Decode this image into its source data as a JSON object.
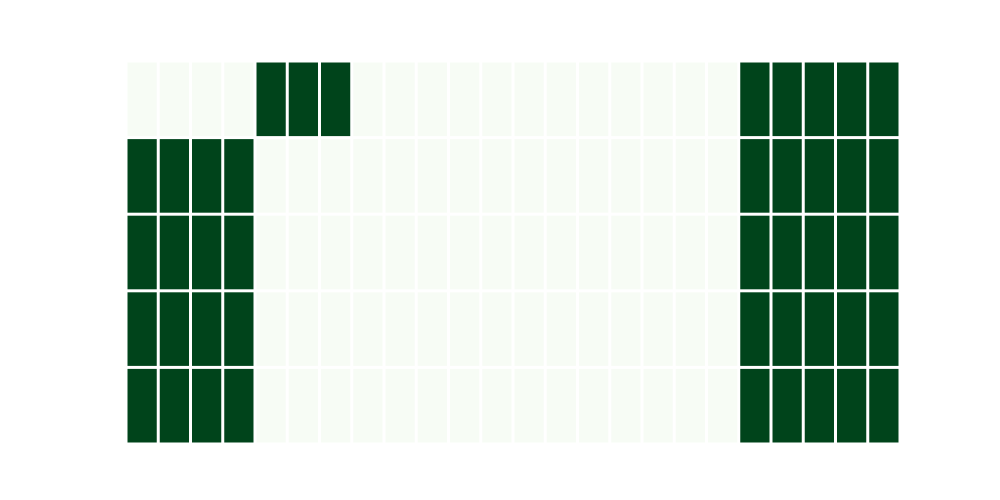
{
  "chart_data": {
    "type": "heatmap",
    "n_rows": 5,
    "n_cols": 24,
    "grid": false,
    "title": "",
    "xlabel": "",
    "ylabel": "",
    "colormap": {
      "low": "#f7fcf5",
      "high": "#00441b"
    },
    "values": [
      [
        0,
        0,
        0,
        0,
        1,
        1,
        1,
        0,
        0,
        0,
        0,
        0,
        0,
        0,
        0,
        0,
        0,
        0,
        0,
        1,
        1,
        1,
        1,
        1
      ],
      [
        1,
        1,
        1,
        1,
        0,
        0,
        0,
        0,
        0,
        0,
        0,
        0,
        0,
        0,
        0,
        0,
        0,
        0,
        0,
        1,
        1,
        1,
        1,
        1
      ],
      [
        1,
        1,
        1,
        1,
        0,
        0,
        0,
        0,
        0,
        0,
        0,
        0,
        0,
        0,
        0,
        0,
        0,
        0,
        0,
        1,
        1,
        1,
        1,
        1
      ],
      [
        1,
        1,
        1,
        1,
        0,
        0,
        0,
        0,
        0,
        0,
        0,
        0,
        0,
        0,
        0,
        0,
        0,
        0,
        0,
        1,
        1,
        1,
        1,
        1
      ],
      [
        1,
        1,
        1,
        1,
        0,
        0,
        0,
        0,
        0,
        0,
        0,
        0,
        0,
        0,
        0,
        0,
        0,
        0,
        0,
        1,
        1,
        1,
        1,
        1
      ]
    ]
  }
}
